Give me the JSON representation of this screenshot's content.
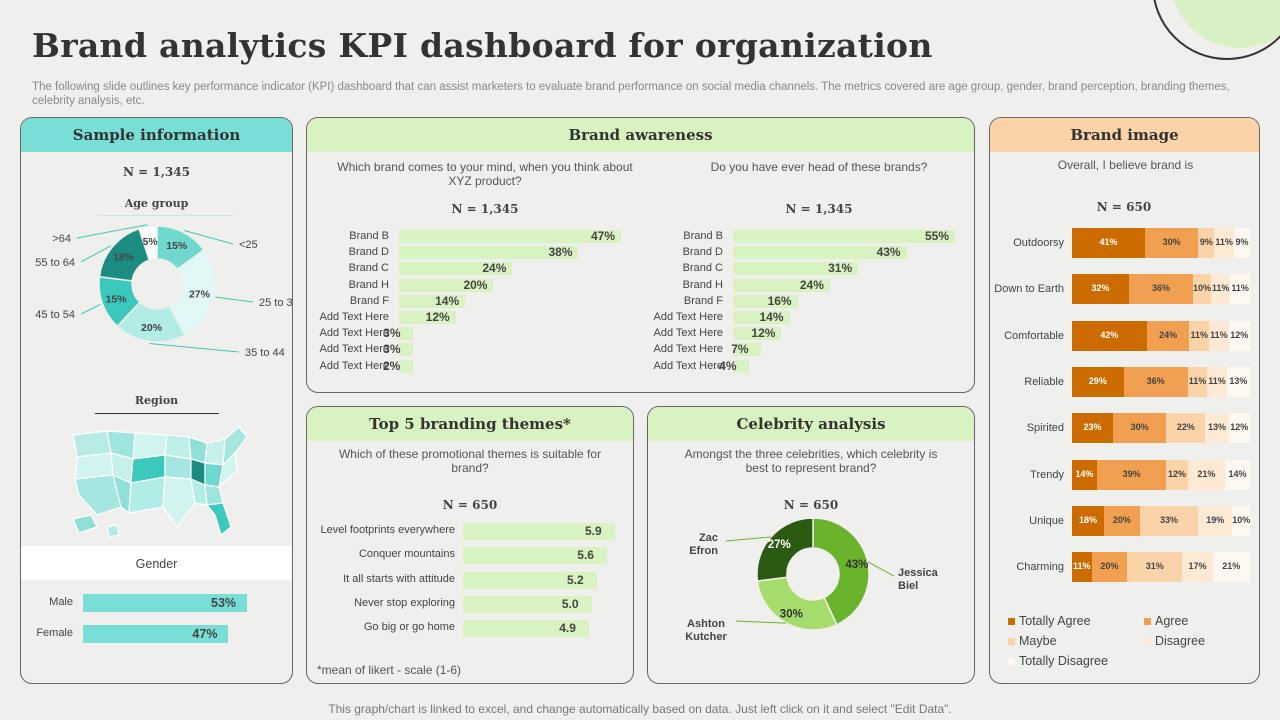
{
  "title": "Brand analytics KPI dashboard for organization",
  "subtitle": "The following slide outlines key performance indicator (KPI) dashboard that can assist marketers to evaluate brand performance on social media channels. The metrics covered are age group, gender, brand perception, branding themes, celebrity analysis, etc.",
  "footer": "This graph/chart is linked to excel,  and change automatically based on data. Just left click on it and select \"Edit Data\".",
  "colors": {
    "teal": "#79dfd6",
    "lightgreen": "#d9f2c1",
    "orange_dark": "#cc6c00",
    "orange": "#f0a050",
    "peach": "#fbd3a8",
    "peach_light": "#fde9d4"
  },
  "sample": {
    "header": "Sample information",
    "n": "N = 1,345",
    "age_title": "Age group",
    "region_title": "Region",
    "gender_title": "Gender",
    "age_segments": [
      {
        "label": "<25",
        "value": "15%",
        "pct": 15,
        "color": "#6fd8cf"
      },
      {
        "label": "25 to 34",
        "value": "27%",
        "pct": 27,
        "color": "#e1f7f5"
      },
      {
        "label": "35 to 44",
        "value": "20%",
        "pct": 20,
        "color": "#b2ece6"
      },
      {
        "label": "45 to 54",
        "value": "15%",
        "pct": 15,
        "color": "#3cc9bd"
      },
      {
        "label": "55 to 64",
        "value": "18%",
        "pct": 18,
        "color": "#1d8c80"
      },
      {
        "label": ">64",
        "value": "5%",
        "pct": 5,
        "color": "#ffffff"
      }
    ],
    "gender": [
      {
        "label": "Male",
        "value": "53%",
        "pct": 53
      },
      {
        "label": "Female",
        "value": "47%",
        "pct": 47
      }
    ]
  },
  "awareness": {
    "header": "Brand awareness",
    "left": {
      "question": "Which brand comes to your mind, when you think about XYZ  product?",
      "n": "N = 1,345",
      "rows": [
        {
          "label": "Brand B",
          "value": "47%",
          "pct": 47
        },
        {
          "label": "Brand D",
          "value": "38%",
          "pct": 38
        },
        {
          "label": "Brand C",
          "value": "24%",
          "pct": 24
        },
        {
          "label": "Brand H",
          "value": "20%",
          "pct": 20
        },
        {
          "label": "Brand F",
          "value": "14%",
          "pct": 14
        },
        {
          "label": "Add Text Here",
          "value": "12%",
          "pct": 12
        },
        {
          "label": "Add Text Here",
          "value": "3%",
          "pct": 3
        },
        {
          "label": "Add Text Here",
          "value": "3%",
          "pct": 3
        },
        {
          "label": "Add Text Here",
          "value": "2%",
          "pct": 2
        }
      ]
    },
    "right": {
      "question": "Do you have ever head of these brands?",
      "n": "N = 1,345",
      "rows": [
        {
          "label": "Brand B",
          "value": "55%",
          "pct": 55
        },
        {
          "label": "Brand D",
          "value": "43%",
          "pct": 43
        },
        {
          "label": "Brand C",
          "value": "31%",
          "pct": 31
        },
        {
          "label": "Brand H",
          "value": "24%",
          "pct": 24
        },
        {
          "label": "Brand F",
          "value": "16%",
          "pct": 16
        },
        {
          "label": "Add Text Here",
          "value": "14%",
          "pct": 14
        },
        {
          "label": "Add Text Here",
          "value": "12%",
          "pct": 12
        },
        {
          "label": "Add Text Here",
          "value": "7%",
          "pct": 7
        },
        {
          "label": "Add Text Here",
          "value": "4%",
          "pct": 4
        }
      ]
    }
  },
  "themes": {
    "header": "Top 5 branding themes*",
    "question": "Which of these promotional themes is suitable for brand?",
    "n": "N = 650",
    "note": "*mean of likert - scale (1-6)",
    "rows": [
      {
        "label": "Level footprints everywhere",
        "value": "5.9",
        "num": 5.9
      },
      {
        "label": "Conquer mountains",
        "value": "5.6",
        "num": 5.6
      },
      {
        "label": "It all starts with attitude",
        "value": "5.2",
        "num": 5.2
      },
      {
        "label": "Never stop exploring",
        "value": "5.0",
        "num": 5.0
      },
      {
        "label": "Go big or go home",
        "value": "4.9",
        "num": 4.9
      }
    ]
  },
  "celebrity": {
    "header": "Celebrity analysis",
    "question": "Amongst the three celebrities, which celebrity is best to represent brand?",
    "n": "N = 650",
    "segments": [
      {
        "label": "Jessica Biel",
        "value": "43%",
        "pct": 43,
        "color": "#6ab42d"
      },
      {
        "label": "Ashton Kutcher",
        "value": "30%",
        "pct": 30,
        "color": "#a5dc6b"
      },
      {
        "label": "Zac Efron",
        "value": "27%",
        "pct": 27,
        "color": "#2d5a12"
      }
    ]
  },
  "brand_image": {
    "header": "Brand image",
    "question": "Overall, I believe brand is",
    "n": "N = 650",
    "rows": [
      {
        "label": "Outdoorsy",
        "values": [
          "41%",
          "30%",
          "9%",
          "11%",
          "9%"
        ],
        "pcts": [
          41,
          30,
          9,
          11,
          9
        ]
      },
      {
        "label": "Down to Earth",
        "values": [
          "32%",
          "36%",
          "10%",
          "11%",
          "11%"
        ],
        "pcts": [
          32,
          36,
          10,
          11,
          11
        ]
      },
      {
        "label": "Comfortable",
        "values": [
          "42%",
          "24%",
          "11%",
          "11%",
          "12%"
        ],
        "pcts": [
          42,
          24,
          11,
          11,
          12
        ]
      },
      {
        "label": "Reliable",
        "values": [
          "29%",
          "36%",
          "11%",
          "11%",
          "13%"
        ],
        "pcts": [
          29,
          36,
          11,
          11,
          13
        ]
      },
      {
        "label": "Spirited",
        "values": [
          "23%",
          "30%",
          "22%",
          "13%",
          "12%"
        ],
        "pcts": [
          23,
          30,
          22,
          13,
          12
        ]
      },
      {
        "label": "Trendy",
        "values": [
          "14%",
          "39%",
          "12%",
          "21%",
          "14%"
        ],
        "pcts": [
          14,
          39,
          12,
          21,
          14
        ]
      },
      {
        "label": "Unique",
        "values": [
          "18%",
          "20%",
          "33%",
          "19%",
          "10%"
        ],
        "pcts": [
          18,
          20,
          33,
          19,
          10
        ]
      },
      {
        "label": "Charming",
        "values": [
          "11%",
          "20%",
          "31%",
          "17%",
          "21%"
        ],
        "pcts": [
          11,
          20,
          31,
          17,
          21
        ]
      }
    ],
    "legend": [
      {
        "label": "Totally Agree",
        "color": "#cc6c00"
      },
      {
        "label": "Agree",
        "color": "#f0a050"
      },
      {
        "label": "Maybe",
        "color": "#fbd3a8"
      },
      {
        "label": "Disagree",
        "color": "#fde9d4"
      },
      {
        "label": "Totally Disagree",
        "color": "#fff8f0"
      }
    ]
  }
}
